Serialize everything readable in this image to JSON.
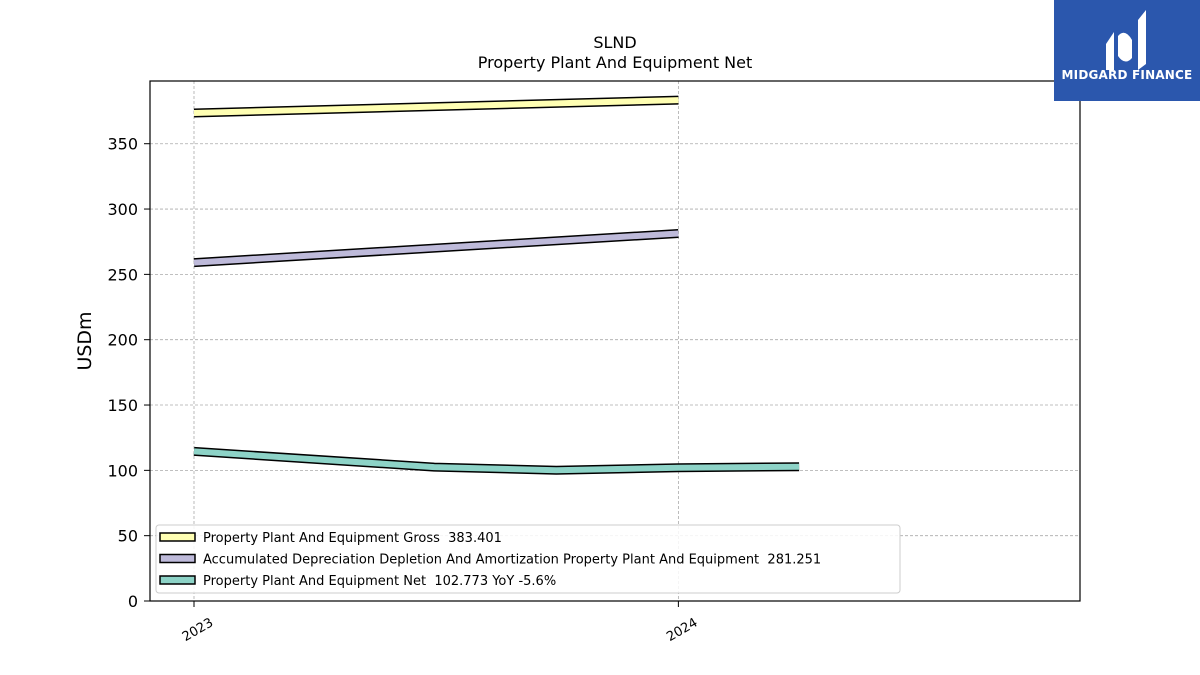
{
  "chart_data": {
    "type": "line",
    "title": "SLND",
    "subtitle": "Property Plant And Equipment Net",
    "ylabel": "USDm",
    "xlabel": "",
    "ylim": [
      0,
      398
    ],
    "yticks": [
      0,
      50,
      100,
      150,
      200,
      250,
      300,
      350
    ],
    "x_range": [
      "2023-01-01",
      "2024-10-01"
    ],
    "xticks": [
      {
        "label": "2023",
        "date": "2023-01-01"
      },
      {
        "label": "2024",
        "date": "2024-01-01"
      }
    ],
    "grid": true,
    "legend_position": "bottom-left",
    "series": [
      {
        "name": "Property Plant And Equipment Gross",
        "legend": "Property Plant And Equipment Gross  383.401",
        "color": "#ffffb3",
        "points": [
          {
            "x": "2023-01-01",
            "y": 373.5
          },
          {
            "x": "2024-01-01",
            "y": 383.4
          }
        ]
      },
      {
        "name": "Accumulated Depreciation Depletion And Amortization Property Plant And Equipment",
        "legend": "Accumulated Depreciation Depletion And Amortization Property Plant And Equipment  281.251",
        "color": "#bebada",
        "points": [
          {
            "x": "2023-01-01",
            "y": 259.0
          },
          {
            "x": "2024-01-01",
            "y": 281.3
          }
        ]
      },
      {
        "name": "Property Plant And Equipment Net",
        "legend": "Property Plant And Equipment Net  102.773 YoY -5.6%",
        "color": "#8dd3c7",
        "points": [
          {
            "x": "2023-01-01",
            "y": 114.5
          },
          {
            "x": "2023-07-01",
            "y": 102.5
          },
          {
            "x": "2023-10-01",
            "y": 100.0
          },
          {
            "x": "2024-01-01",
            "y": 102.0
          },
          {
            "x": "2024-04-01",
            "y": 102.8
          }
        ]
      }
    ]
  },
  "brand": {
    "name": "MIDGARD FINANCE",
    "color": "#2b57ad",
    "icon": "midgard-logo-icon"
  }
}
